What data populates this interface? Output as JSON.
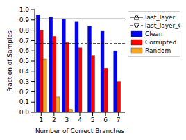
{
  "chart_data": {
    "type": "bar",
    "x_label": "Number of Correct Branches",
    "y_label": "Fraction of Samples",
    "categories": [
      "1",
      "2",
      "3",
      "4",
      "5",
      "6",
      "7"
    ],
    "series": [
      {
        "name": "Clean",
        "color": "#0000ff",
        "values": [
          0.95,
          0.93,
          0.91,
          0.88,
          0.84,
          0.79,
          0.6
        ]
      },
      {
        "name": "Corrupted",
        "color": "#ff0000",
        "values": [
          0.8,
          0.74,
          0.68,
          0.63,
          0.55,
          0.43,
          0.3
        ]
      },
      {
        "name": "Random",
        "color": "#f5a623",
        "values": [
          0.52,
          0.15,
          0.03,
          0,
          0,
          0,
          0
        ]
      }
    ],
    "reference_lines": [
      {
        "name": "last_layer",
        "value": 0.91,
        "color": "#000000",
        "line_style": "solid",
        "marker": "triangle"
      },
      {
        "name": "last_layer_C",
        "value": 0.67,
        "color": "#000000",
        "line_style": "dashed",
        "marker": "triangle-down"
      }
    ],
    "ylim": [
      0,
      1
    ],
    "yticks": [
      {
        "value": 0,
        "label": "0.0"
      },
      0.1,
      0.2,
      0.3,
      0.4,
      0.5,
      0.6,
      0.7,
      0.8,
      0.9,
      {
        "value": 1,
        "label": "1.0"
      }
    ],
    "legend": "upper right"
  }
}
